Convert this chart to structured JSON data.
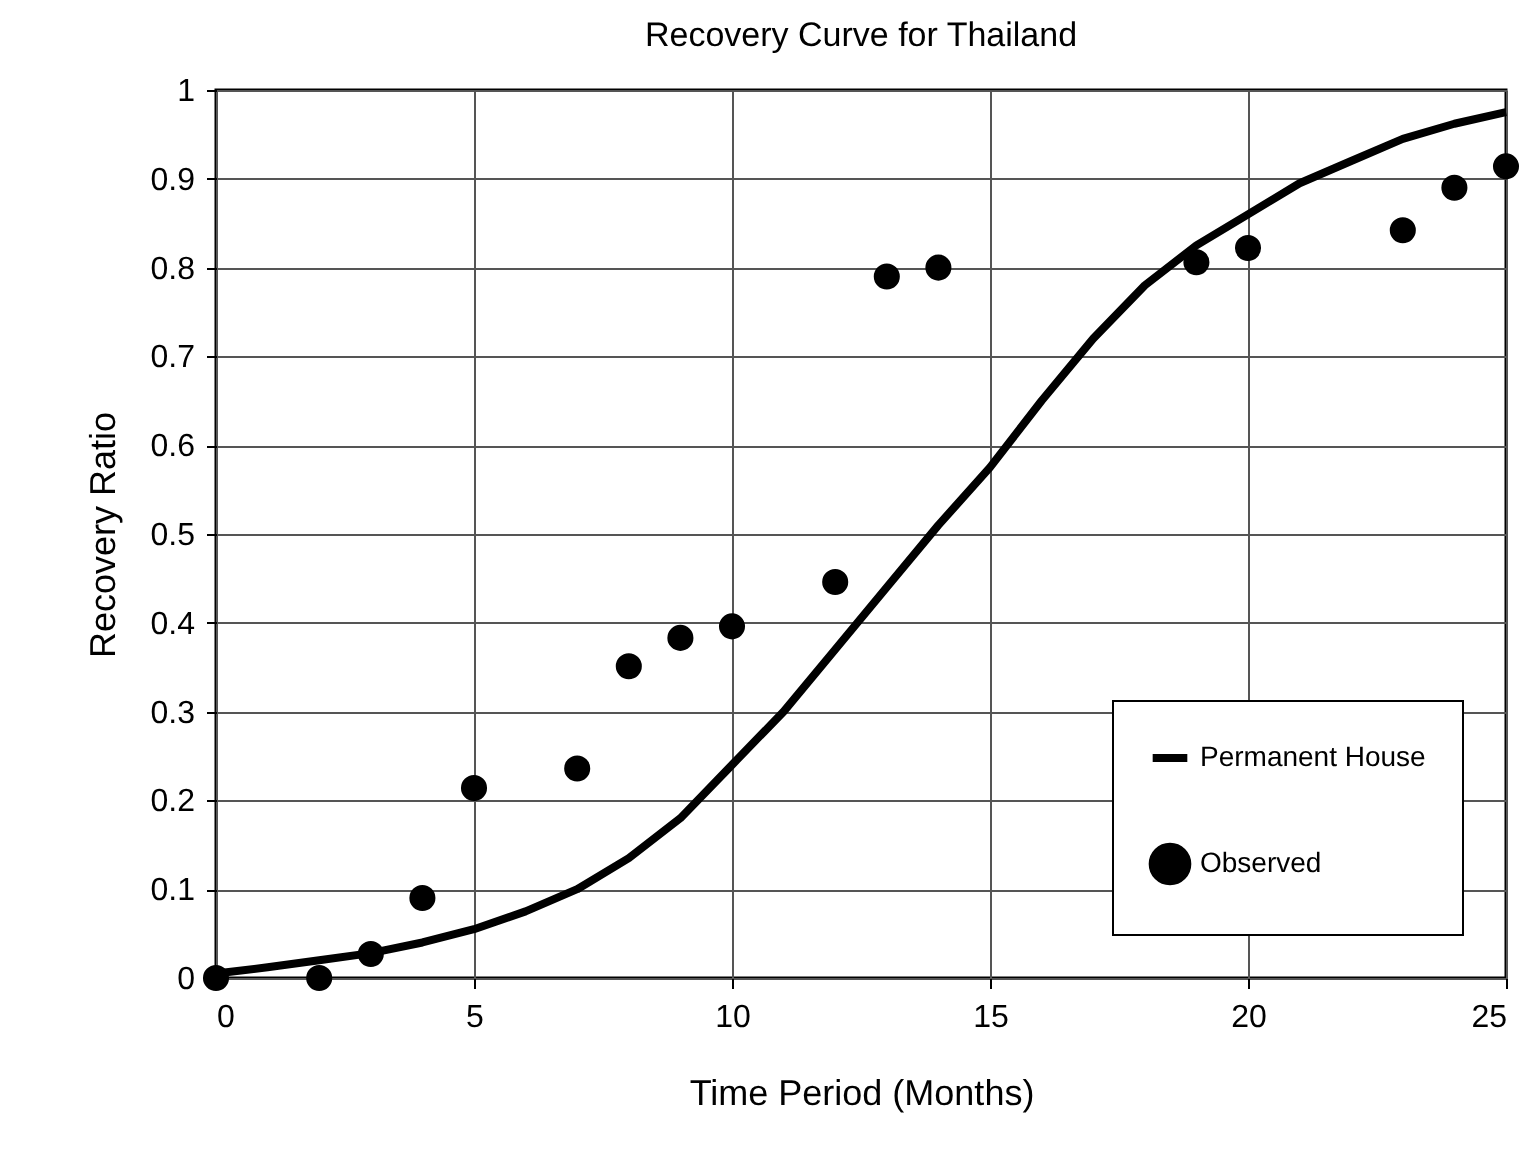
{
  "chart_data": {
    "type": "scatter",
    "title": "Recovery Curve for Thailand",
    "xlabel": "Time Period (Months)",
    "ylabel": "Recovery Ratio",
    "xlim": [
      0,
      25
    ],
    "xticks": [
      0,
      5,
      10,
      15,
      20,
      25
    ],
    "ylim": [
      0,
      1
    ],
    "yticks": [
      0,
      0.1,
      0.2,
      0.3,
      0.4,
      0.5,
      0.6,
      0.7,
      0.8,
      0.9,
      1
    ],
    "grid": true,
    "legend": "bottom right",
    "series": [
      {
        "name": "Permanent House",
        "type": "line",
        "color": "#000000",
        "x": [
          0,
          1,
          2,
          3,
          4,
          5,
          6,
          7,
          8,
          9,
          10,
          11,
          12,
          13,
          14,
          15,
          16,
          17,
          18,
          19,
          20,
          21,
          22,
          23,
          24,
          25
        ],
        "values": [
          0.005,
          0.012,
          0.02,
          0.028,
          0.04,
          0.055,
          0.075,
          0.1,
          0.135,
          0.18,
          0.24,
          0.3,
          0.37,
          0.44,
          0.51,
          0.575,
          0.65,
          0.72,
          0.78,
          0.825,
          0.86,
          0.895,
          0.92,
          0.945,
          0.962,
          0.975
        ]
      },
      {
        "name": "Observed",
        "color": "#000000",
        "marker": "circle",
        "x": [
          0,
          2,
          3,
          4,
          5,
          7,
          8,
          9,
          10,
          12,
          13,
          14,
          19,
          20,
          23,
          24,
          25
        ],
        "values": [
          0,
          0,
          0.027,
          0.09,
          0.214,
          0.236,
          0.351,
          0.383,
          0.396,
          0.446,
          0.79,
          0.8,
          0.806,
          0.822,
          0.842,
          0.89,
          0.914
        ]
      }
    ]
  }
}
